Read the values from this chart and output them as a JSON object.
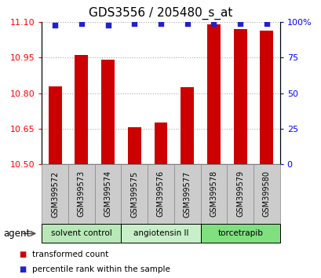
{
  "title": "GDS3556 / 205480_s_at",
  "categories": [
    "GSM399572",
    "GSM399573",
    "GSM399574",
    "GSM399575",
    "GSM399576",
    "GSM399577",
    "GSM399578",
    "GSM399579",
    "GSM399580"
  ],
  "red_values": [
    10.83,
    10.96,
    10.94,
    10.655,
    10.675,
    10.825,
    11.09,
    11.07,
    11.065
  ],
  "blue_values": [
    98,
    99,
    98,
    99,
    99,
    99,
    99,
    99,
    99
  ],
  "ylim_left": [
    10.5,
    11.1
  ],
  "ylim_right": [
    0,
    100
  ],
  "yticks_left": [
    10.5,
    10.65,
    10.8,
    10.95,
    11.1
  ],
  "yticks_right": [
    0,
    25,
    50,
    75,
    100
  ],
  "ytick_labels_right": [
    "0",
    "25",
    "50",
    "75",
    "100%"
  ],
  "groups": [
    {
      "label": "solvent control",
      "start": 0,
      "end": 3,
      "color": "#b8e8b8"
    },
    {
      "label": "angiotensin II",
      "start": 3,
      "end": 6,
      "color": "#c8f0c8"
    },
    {
      "label": "torcetrapib",
      "start": 6,
      "end": 9,
      "color": "#80e080"
    }
  ],
  "agent_label": "agent",
  "legend_red": "transformed count",
  "legend_blue": "percentile rank within the sample",
  "bar_color": "#cc0000",
  "dot_color": "#2222cc",
  "bar_bottom": 10.5,
  "grid_color": "#aaaaaa",
  "title_fontsize": 11,
  "tick_fontsize": 8,
  "label_fontsize": 8,
  "cat_box_color": "#cccccc",
  "cat_box_edge": "#888888"
}
